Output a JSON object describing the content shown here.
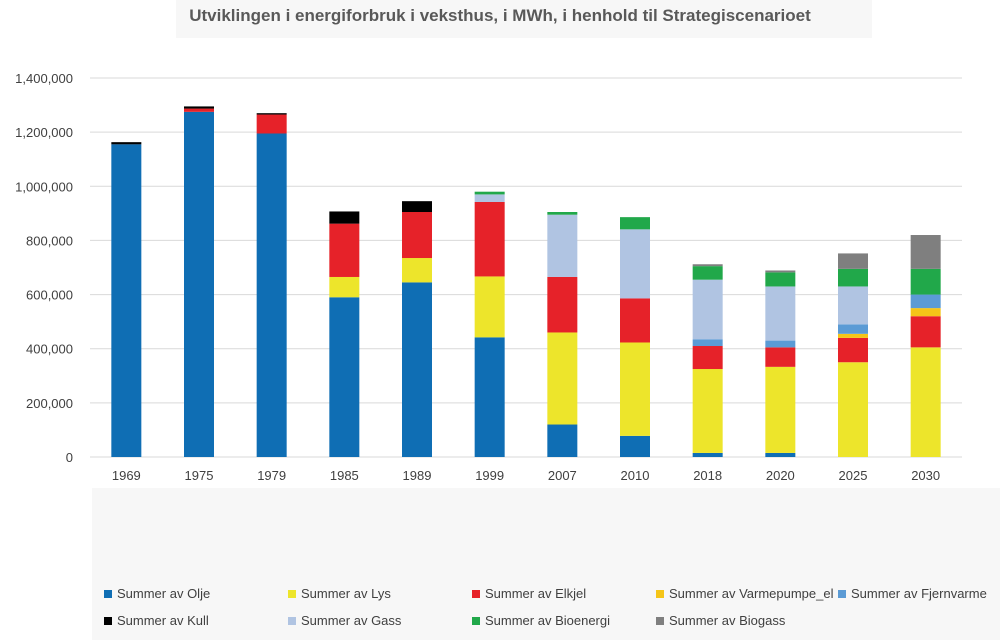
{
  "chart_data": {
    "type": "bar",
    "stacked": true,
    "title": "Utviklingen i energiforbruk i veksthus, i MWh, i henhold til Strategiscenarioet",
    "xlabel": "",
    "ylabel": "",
    "ylim": [
      0,
      1400000
    ],
    "yticks": [
      "0",
      "200,000",
      "400,000",
      "600,000",
      "800,000",
      "1,000,000",
      "1,200,000",
      "1,400,000"
    ],
    "grid": true,
    "legend_position": "bottom",
    "categories": [
      "1969",
      "1975",
      "1979",
      "1985",
      "1989",
      "1999",
      "2007",
      "2010",
      "2018",
      "2020",
      "2025",
      "2030"
    ],
    "series": [
      {
        "name": "Summer av Olje",
        "color": "#0F6EB4",
        "values": [
          1155000,
          1275000,
          1195000,
          590000,
          645000,
          442000,
          120000,
          78000,
          15000,
          15000,
          0,
          0
        ]
      },
      {
        "name": "Summer av Lys",
        "color": "#EDE52B",
        "values": [
          0,
          0,
          0,
          75000,
          90000,
          225000,
          340000,
          345000,
          310000,
          318000,
          350000,
          405000
        ]
      },
      {
        "name": "Summer av Elkjel",
        "color": "#E62229",
        "values": [
          0,
          12000,
          70000,
          197000,
          170000,
          275000,
          205000,
          163000,
          85000,
          72000,
          90000,
          115000
        ]
      },
      {
        "name": "Summer av Varmepumpe_el",
        "color": "#F5C518",
        "values": [
          0,
          0,
          0,
          0,
          0,
          0,
          0,
          0,
          0,
          0,
          15000,
          30000
        ]
      },
      {
        "name": "Summer av Fjernvarme",
        "color": "#5B9BD5",
        "values": [
          0,
          0,
          0,
          0,
          0,
          0,
          0,
          0,
          25000,
          25000,
          35000,
          50000
        ]
      },
      {
        "name": "Summer av Kull",
        "color": "#000000",
        "values": [
          8000,
          8000,
          5000,
          45000,
          40000,
          0,
          0,
          0,
          0,
          0,
          0,
          0
        ]
      },
      {
        "name": "Summer av Gass",
        "color": "#B0C4E2",
        "values": [
          0,
          0,
          0,
          0,
          0,
          28000,
          230000,
          255000,
          220000,
          200000,
          140000,
          0
        ]
      },
      {
        "name": "Summer av Bioenergi",
        "color": "#21A84A",
        "values": [
          0,
          0,
          0,
          0,
          0,
          10000,
          10000,
          45000,
          50000,
          52000,
          65000,
          95000
        ]
      },
      {
        "name": "Summer av Biogass",
        "color": "#7F7F7F",
        "values": [
          0,
          0,
          0,
          0,
          0,
          0,
          0,
          0,
          7000,
          7000,
          57000,
          125000
        ]
      }
    ]
  }
}
